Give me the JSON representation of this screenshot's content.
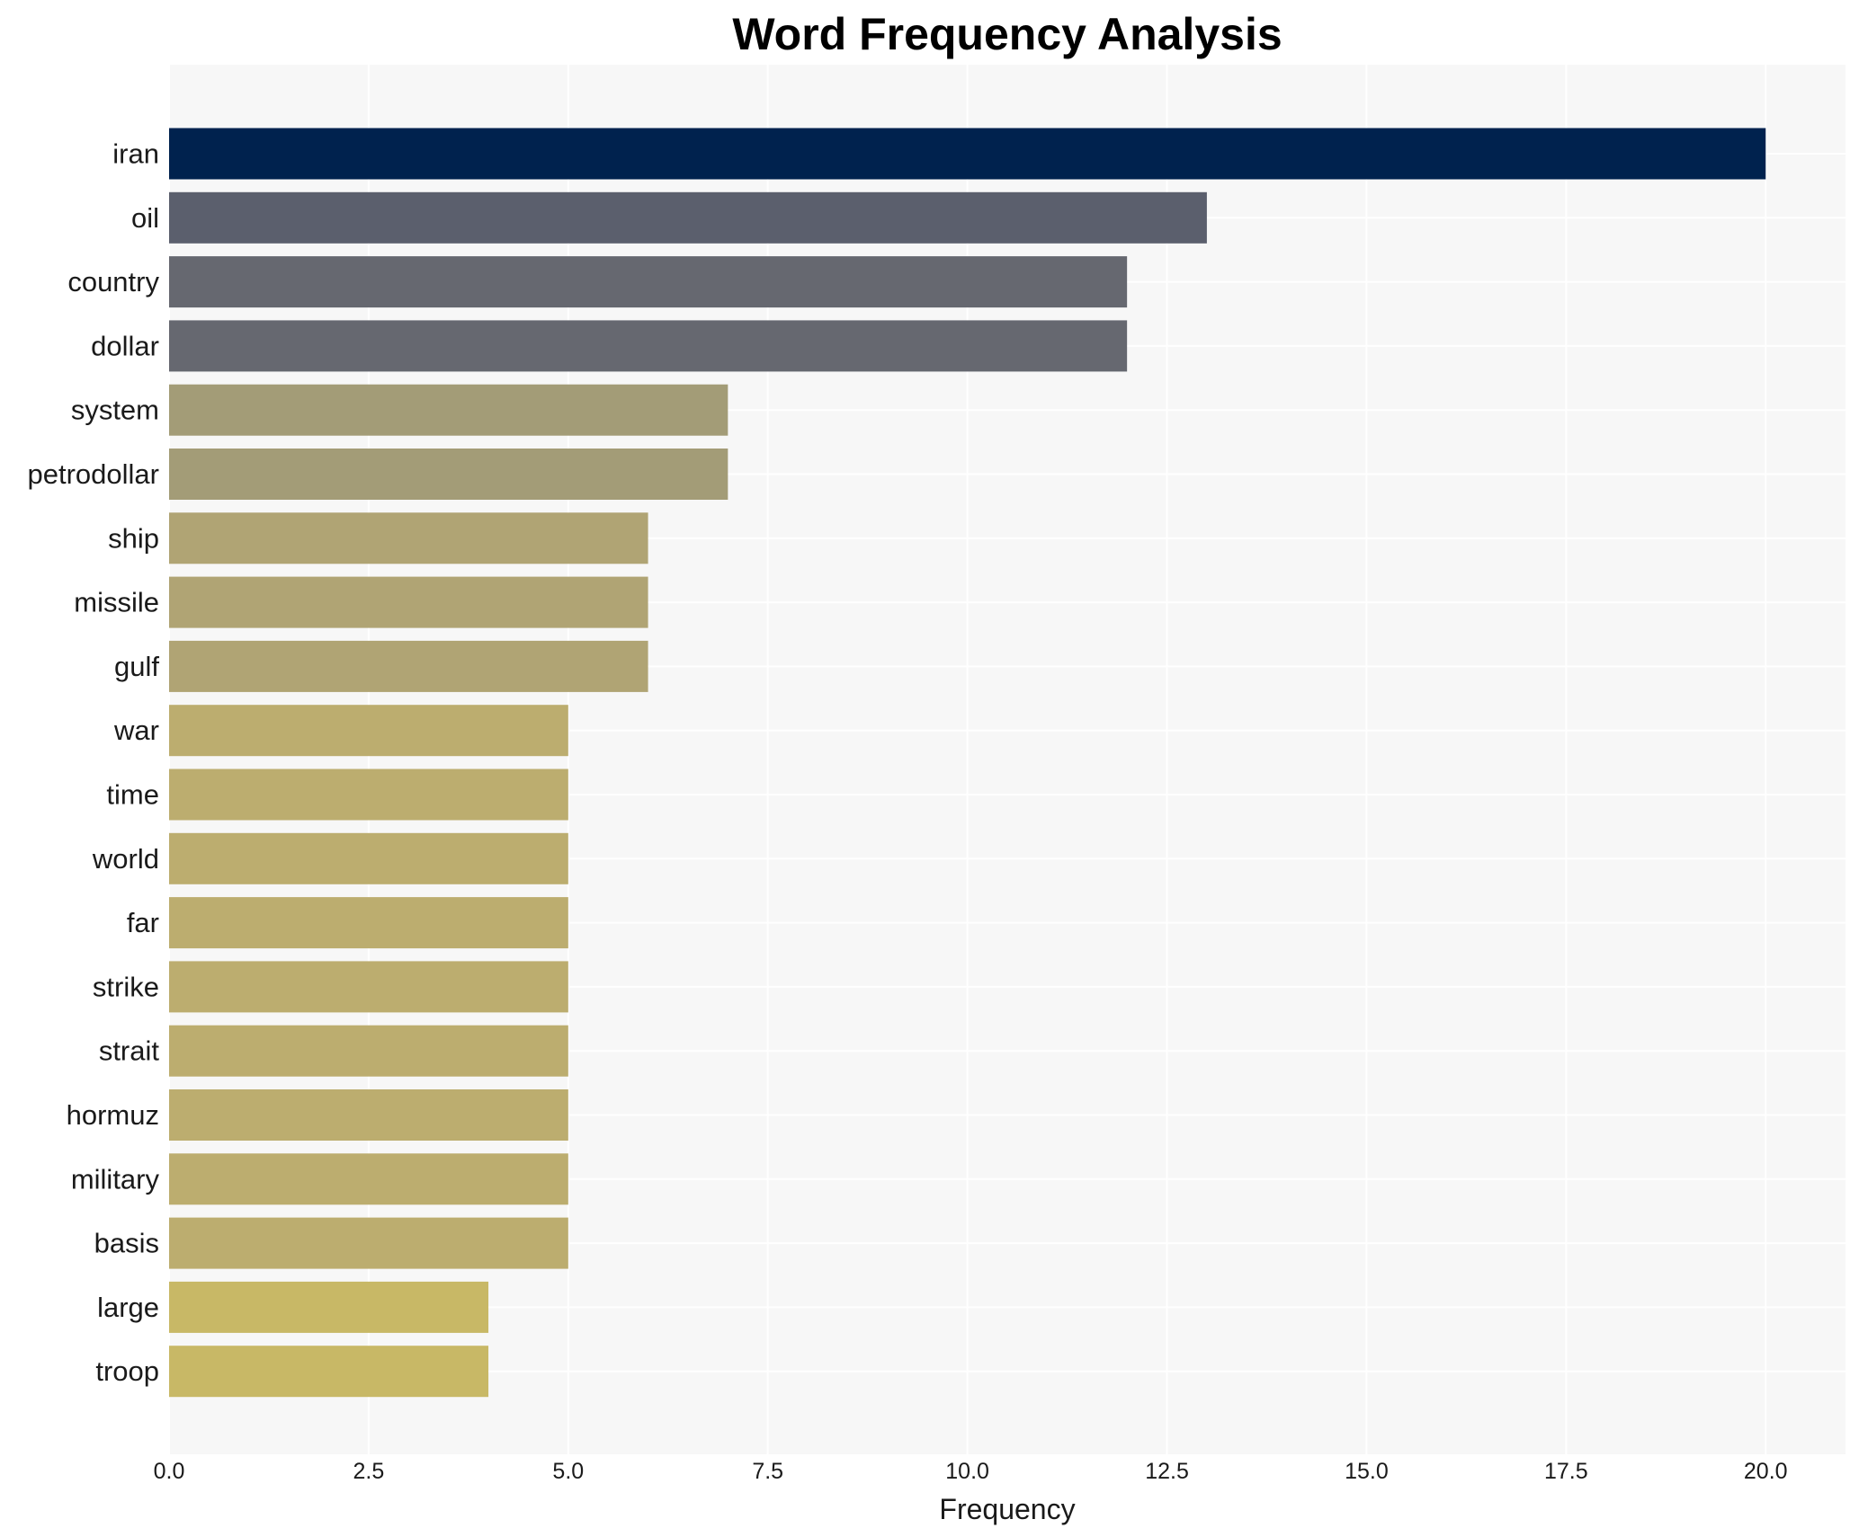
{
  "chart_data": {
    "type": "bar",
    "orientation": "horizontal",
    "title": "Word Frequency Analysis",
    "xlabel": "Frequency",
    "ylabel": "",
    "xlim": [
      0,
      21
    ],
    "x_ticks": [
      "0.0",
      "2.5",
      "5.0",
      "7.5",
      "10.0",
      "12.5",
      "15.0",
      "17.5",
      "20.0"
    ],
    "grid": true,
    "categories": [
      "iran",
      "oil",
      "country",
      "dollar",
      "system",
      "petrodollar",
      "ship",
      "missile",
      "gulf",
      "war",
      "time",
      "world",
      "far",
      "strike",
      "strait",
      "hormuz",
      "military",
      "basis",
      "large",
      "troop"
    ],
    "values": [
      20,
      13,
      12,
      12,
      7,
      7,
      6,
      6,
      6,
      5,
      5,
      5,
      5,
      5,
      5,
      5,
      5,
      5,
      4,
      4
    ],
    "colors": [
      "#00224e",
      "#5b5f6d",
      "#666870",
      "#666870",
      "#a39c77",
      "#a39c77",
      "#b0a474",
      "#b0a474",
      "#b0a474",
      "#bcad6f",
      "#bcad6f",
      "#bcad6f",
      "#bcad6f",
      "#bcad6f",
      "#bcad6f",
      "#bcad6f",
      "#bcad6f",
      "#bcad6f",
      "#c8b866",
      "#c8b866"
    ],
    "plot_background": "#f7f7f7",
    "grid_color": "#ffffff"
  }
}
